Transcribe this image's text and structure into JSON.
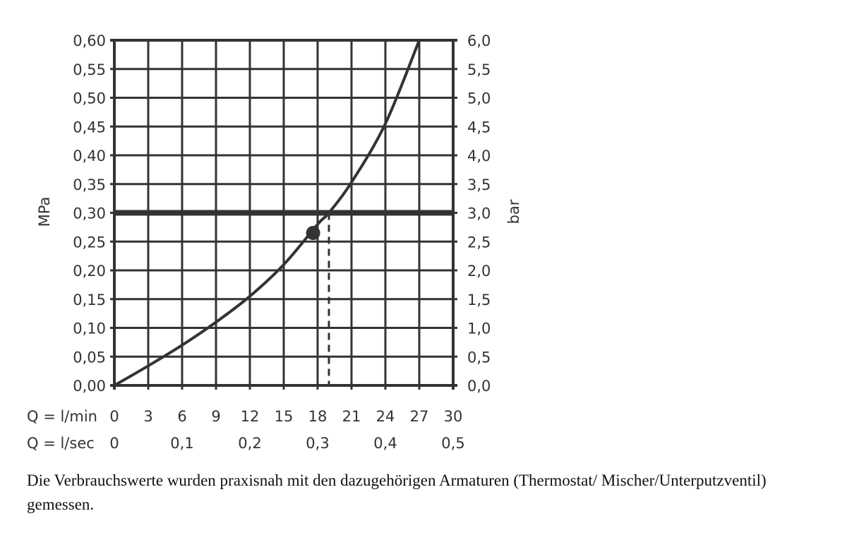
{
  "chart_data": {
    "type": "line",
    "title": "",
    "ylabel_left": "MPa",
    "ylabel_right": "bar",
    "xlabel_rows": [
      "Q = l/min",
      "Q = l/sec"
    ],
    "xlim": [
      0,
      30
    ],
    "ylim": [
      0,
      0.6
    ],
    "grid": true,
    "x_ticks_lmin": [
      "0",
      "3",
      "6",
      "9",
      "12",
      "15",
      "18",
      "21",
      "24",
      "27",
      "30"
    ],
    "x_ticks_lsec": [
      {
        "x": 0,
        "label": "0"
      },
      {
        "x": 6,
        "label": "0,1"
      },
      {
        "x": 12,
        "label": "0,2"
      },
      {
        "x": 18,
        "label": "0,3"
      },
      {
        "x": 24,
        "label": "0,4"
      },
      {
        "x": 30,
        "label": "0,5"
      }
    ],
    "y_ticks_left": [
      "0,00",
      "0,05",
      "0,10",
      "0,15",
      "0,20",
      "0,25",
      "0,30",
      "0,35",
      "0,40",
      "0,45",
      "0,50",
      "0,55",
      "0,60"
    ],
    "y_ticks_right": [
      "0,0",
      "0,5",
      "1,0",
      "1,5",
      "2,0",
      "2,5",
      "3,0",
      "3,5",
      "4,0",
      "4,5",
      "5,0",
      "5,5",
      "6,0"
    ],
    "series": [
      {
        "x": [
          0,
          3,
          6,
          9,
          12,
          15,
          18,
          19,
          21,
          24,
          27
        ],
        "y": [
          0,
          0.034,
          0.07,
          0.11,
          0.155,
          0.21,
          0.28,
          0.3,
          0.353,
          0.455,
          0.6
        ]
      }
    ],
    "reference_line_y": 0.3,
    "marker_point": {
      "x": 17.6,
      "y": 0.265
    },
    "dashed_x": 19,
    "colors": {
      "line": "#333333"
    }
  },
  "caption": "Die Verbrauchswerte wurden praxisnah mit den dazugehörigen Armaturen (Thermostat/ Mischer/Unterputzventil) gemessen."
}
